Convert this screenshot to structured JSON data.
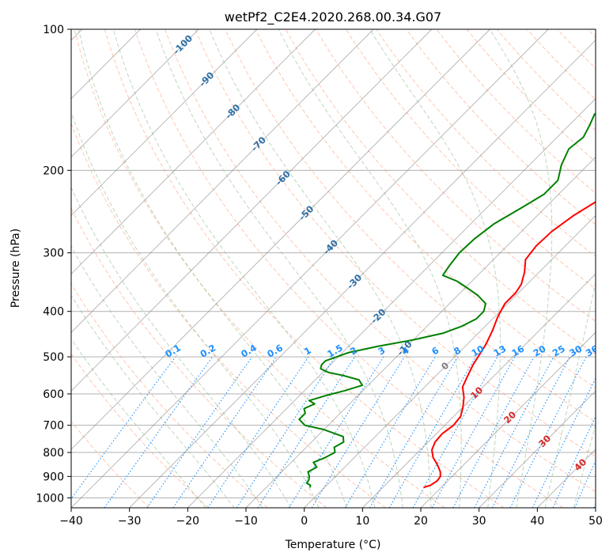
{
  "chart_data": {
    "type": "line",
    "title": "wetPf2_C2E4.2020.268.00.34.G07",
    "xlabel": "Temperature (°C)",
    "ylabel": "Pressure (hPa)",
    "xlim": [
      -40,
      50
    ],
    "ylim": [
      1050,
      100
    ],
    "y_scale": "log",
    "grid": true,
    "x_ticks": [
      "−40",
      "−30",
      "−20",
      "−10",
      "0",
      "10",
      "20",
      "30",
      "40",
      "50"
    ],
    "x_tick_values": [
      -40,
      -30,
      -20,
      -10,
      0,
      10,
      20,
      30,
      40,
      50
    ],
    "y_ticks": [
      "100",
      "200",
      "300",
      "400",
      "500",
      "600",
      "700",
      "800",
      "900",
      "1000"
    ],
    "y_tick_values": [
      100,
      200,
      300,
      400,
      500,
      600,
      700,
      800,
      900,
      1000
    ],
    "series": [
      {
        "color": "#ff0000",
        "points": [
          [
            17.0,
            950
          ],
          [
            17.8,
            940
          ],
          [
            18.2,
            920
          ],
          [
            18.0,
            900
          ],
          [
            17.2,
            880
          ],
          [
            15.5,
            850
          ],
          [
            13.5,
            820
          ],
          [
            12.0,
            790
          ],
          [
            11.2,
            760
          ],
          [
            11.0,
            730
          ],
          [
            11.5,
            700
          ],
          [
            11.2,
            670
          ],
          [
            10.0,
            640
          ],
          [
            8.5,
            610
          ],
          [
            6.5,
            580
          ],
          [
            5.5,
            550
          ],
          [
            4.5,
            520
          ],
          [
            4.0,
            500
          ],
          [
            3.2,
            470
          ],
          [
            2.0,
            440
          ],
          [
            0.5,
            410
          ],
          [
            -0.5,
            385
          ],
          [
            -0.5,
            365
          ],
          [
            -1.0,
            350
          ],
          [
            -2.5,
            330
          ],
          [
            -4.5,
            310
          ],
          [
            -5.0,
            290
          ],
          [
            -4.8,
            270
          ],
          [
            -3.8,
            250
          ],
          [
            -2.0,
            230
          ],
          [
            1.0,
            210
          ],
          [
            4.5,
            195
          ],
          [
            7.5,
            180
          ],
          [
            10.5,
            165
          ],
          [
            12.5,
            155
          ],
          [
            15.0,
            145
          ],
          [
            16.5,
            135
          ],
          [
            17.5,
            128
          ],
          [
            18.5,
            122
          ],
          [
            19.5,
            117
          ],
          [
            20.5,
            113
          ],
          [
            21.5,
            108
          ],
          [
            22.5,
            104
          ],
          [
            23.0,
            100
          ]
        ]
      },
      {
        "color": "#008000",
        "points": [
          [
            -2.5,
            950
          ],
          [
            -2.8,
            940
          ],
          [
            -3.8,
            930
          ],
          [
            -4.0,
            915
          ],
          [
            -4.5,
            900
          ],
          [
            -5.5,
            880
          ],
          [
            -4.8,
            860
          ],
          [
            -6.2,
            840
          ],
          [
            -5.0,
            820
          ],
          [
            -4.2,
            800
          ],
          [
            -5.2,
            780
          ],
          [
            -4.5,
            760
          ],
          [
            -5.5,
            740
          ],
          [
            -10.0,
            715
          ],
          [
            -14.0,
            700
          ],
          [
            -16.0,
            680
          ],
          [
            -16.0,
            660
          ],
          [
            -17.0,
            645
          ],
          [
            -16.0,
            630
          ],
          [
            -17.5,
            620
          ],
          [
            -15.5,
            605
          ],
          [
            -13.0,
            590
          ],
          [
            -11.0,
            575
          ],
          [
            -12.5,
            560
          ],
          [
            -16.0,
            548
          ],
          [
            -19.0,
            540
          ],
          [
            -21.0,
            530
          ],
          [
            -21.5,
            520
          ],
          [
            -21.5,
            510
          ],
          [
            -19.0,
            490
          ],
          [
            -15.0,
            475
          ],
          [
            -10.0,
            460
          ],
          [
            -6.0,
            445
          ],
          [
            -4.0,
            430
          ],
          [
            -2.8,
            415
          ],
          [
            -2.8,
            400
          ],
          [
            -3.8,
            385
          ],
          [
            -6.5,
            370
          ],
          [
            -10.0,
            355
          ],
          [
            -12.5,
            345
          ],
          [
            -16.0,
            335
          ],
          [
            -16.5,
            320
          ],
          [
            -17.0,
            300
          ],
          [
            -16.8,
            280
          ],
          [
            -16.0,
            260
          ],
          [
            -14.0,
            240
          ],
          [
            -12.5,
            225
          ],
          [
            -12.5,
            210
          ],
          [
            -14.5,
            195
          ],
          [
            -16.0,
            180
          ],
          [
            -15.5,
            170
          ],
          [
            -16.5,
            160
          ],
          [
            -17.5,
            152
          ],
          [
            -17.0,
            145
          ],
          [
            -15.0,
            140
          ],
          [
            -11.0,
            135
          ],
          [
            -7.0,
            130
          ],
          [
            -3.0,
            125
          ],
          [
            0.5,
            120
          ],
          [
            3.0,
            115
          ],
          [
            5.0,
            110
          ],
          [
            7.0,
            105
          ],
          [
            8.5,
            101
          ]
        ]
      }
    ],
    "reference_lines": {
      "isotherm_labels": [
        "-100",
        "-90",
        "-80",
        "-70",
        "-60",
        "-50",
        "-40",
        "-30",
        "-20",
        "-10"
      ],
      "isotherm_label_values": [
        -100,
        -90,
        -80,
        -70,
        -60,
        -50,
        -40,
        -30,
        -20,
        -10
      ],
      "mixing_ratio_labels": [
        "0.1",
        "0.2",
        "0.4",
        "0.6",
        "1",
        "1.5",
        "2",
        "3",
        "4",
        "6",
        "8",
        "10",
        "13",
        "16",
        "20",
        "25",
        "30",
        "36"
      ],
      "mixing_ratio_values": [
        0.1,
        0.2,
        0.4,
        0.6,
        1,
        1.5,
        2,
        3,
        4,
        6,
        8,
        10,
        13,
        16,
        20,
        25,
        30,
        36
      ],
      "mixing_ratio_label_positions": [
        -22.5,
        -16.5,
        -9.5,
        -5.0,
        0.6,
        5.3,
        8.5,
        13.3,
        17.4,
        22.5,
        26.3,
        29.8,
        33.6,
        36.7,
        40.4,
        43.7,
        46.6,
        49.4
      ],
      "moist_adiabat_labels": [
        "0",
        "10",
        "20",
        "30",
        "40"
      ],
      "moist_adiabat_values": [
        0,
        10,
        20,
        30,
        40
      ]
    },
    "colors": {
      "temperature": "#ff0000",
      "dewpoint": "#008000",
      "grid": "#b0b0b0",
      "isotherm": "#7f7f7f",
      "isotherm_label": "#2e6fa6",
      "dry_adiabat": "#ffa07a",
      "moist_adiabat": "#8fbc8f",
      "mixing_ratio": "#1e90ff",
      "mixing_ratio_label": "#1e90ff",
      "moist_label": "#d62728"
    }
  }
}
